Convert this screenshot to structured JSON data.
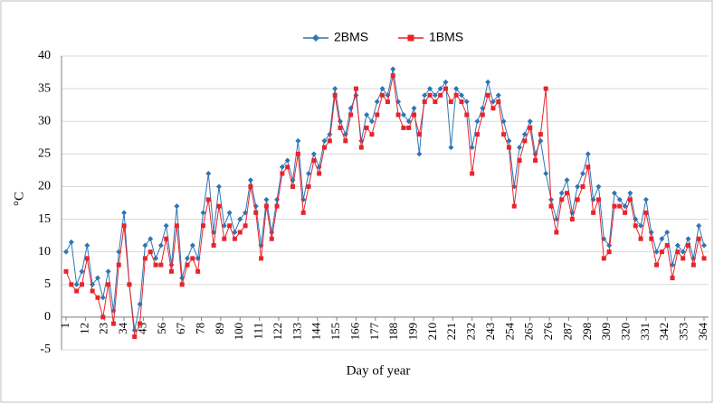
{
  "chart_data": {
    "type": "line",
    "x_label": "Day of year",
    "y_label": "°C",
    "x": [
      1,
      4,
      7,
      10,
      13,
      16,
      19,
      22,
      25,
      28,
      31,
      34,
      37,
      40,
      43,
      46,
      49,
      52,
      55,
      58,
      61,
      64,
      67,
      70,
      73,
      76,
      79,
      82,
      85,
      88,
      91,
      94,
      97,
      100,
      103,
      106,
      109,
      112,
      115,
      118,
      121,
      124,
      127,
      130,
      133,
      136,
      139,
      142,
      145,
      148,
      151,
      154,
      157,
      160,
      163,
      166,
      169,
      172,
      175,
      178,
      181,
      184,
      187,
      190,
      193,
      196,
      199,
      202,
      205,
      208,
      211,
      214,
      217,
      220,
      223,
      226,
      229,
      232,
      235,
      238,
      241,
      244,
      247,
      250,
      253,
      256,
      259,
      262,
      265,
      268,
      271,
      274,
      277,
      280,
      283,
      286,
      289,
      292,
      295,
      298,
      301,
      304,
      307,
      310,
      313,
      316,
      319,
      322,
      325,
      328,
      331,
      334,
      337,
      340,
      343,
      346,
      349,
      352,
      355,
      358,
      361,
      364
    ],
    "xlim": [
      1,
      364
    ],
    "xticks": [
      1,
      12,
      23,
      34,
      45,
      56,
      67,
      78,
      89,
      100,
      111,
      122,
      133,
      144,
      155,
      166,
      177,
      188,
      199,
      210,
      221,
      232,
      243,
      254,
      265,
      276,
      287,
      298,
      309,
      320,
      331,
      342,
      353,
      364
    ],
    "ylim": [
      -5,
      40
    ],
    "yticks": [
      -5,
      0,
      5,
      10,
      15,
      20,
      25,
      30,
      35,
      40
    ],
    "grid": true,
    "legend": "top",
    "series": [
      {
        "name": "2BMS",
        "color": "#2e75b6",
        "marker": "diamond",
        "values": [
          10,
          11.5,
          5,
          7,
          11,
          5,
          6,
          3,
          7,
          1,
          10,
          16,
          5,
          -2,
          2,
          11,
          12,
          9,
          11,
          14,
          8,
          17,
          6,
          9,
          11,
          9,
          16,
          22,
          13,
          20,
          14,
          16,
          13,
          15,
          16,
          21,
          17,
          11,
          18,
          13,
          18,
          23,
          24,
          21,
          27,
          18,
          22,
          25,
          23,
          27,
          28,
          35,
          30,
          28,
          32,
          34,
          27,
          31,
          30,
          33,
          35,
          34,
          38,
          33,
          31,
          30,
          32,
          25,
          34,
          35,
          34,
          35,
          36,
          26,
          35,
          34,
          33,
          26,
          30,
          32,
          36,
          33,
          34,
          30,
          27,
          20,
          26,
          28,
          30,
          25,
          27,
          22,
          18,
          15,
          19,
          21,
          16,
          20,
          22,
          25,
          18,
          20,
          12,
          11,
          19,
          18,
          17,
          19,
          15,
          14,
          18,
          13,
          10,
          12,
          13,
          8,
          11,
          10,
          12,
          9,
          14,
          11
        ]
      },
      {
        "name": "1BMS",
        "color": "#e8242b",
        "marker": "square",
        "values": [
          7,
          5,
          4,
          5,
          9,
          4,
          3,
          0,
          5,
          -1,
          8,
          14,
          5,
          -3,
          -1,
          9,
          10,
          8,
          8,
          12,
          7,
          14,
          5,
          8,
          9,
          7,
          14,
          18,
          11,
          17,
          12,
          14,
          12,
          13,
          14,
          20,
          16,
          9,
          17,
          12,
          17,
          22,
          23,
          20,
          25,
          16,
          20,
          24,
          22,
          26,
          27,
          34,
          29,
          27,
          31,
          35,
          26,
          29,
          28,
          31,
          34,
          33,
          37,
          31,
          29,
          29,
          31,
          28,
          33,
          34,
          33,
          34,
          35,
          33,
          34,
          33,
          31,
          22,
          28,
          31,
          34,
          32,
          33,
          28,
          26,
          17,
          24,
          27,
          29,
          24,
          28,
          35,
          17,
          13,
          18,
          19,
          15,
          18,
          20,
          23,
          16,
          18,
          9,
          10,
          17,
          17,
          16,
          18,
          14,
          12,
          16,
          12,
          8,
          10,
          11,
          6,
          10,
          9,
          11,
          8,
          12,
          9
        ]
      }
    ]
  }
}
